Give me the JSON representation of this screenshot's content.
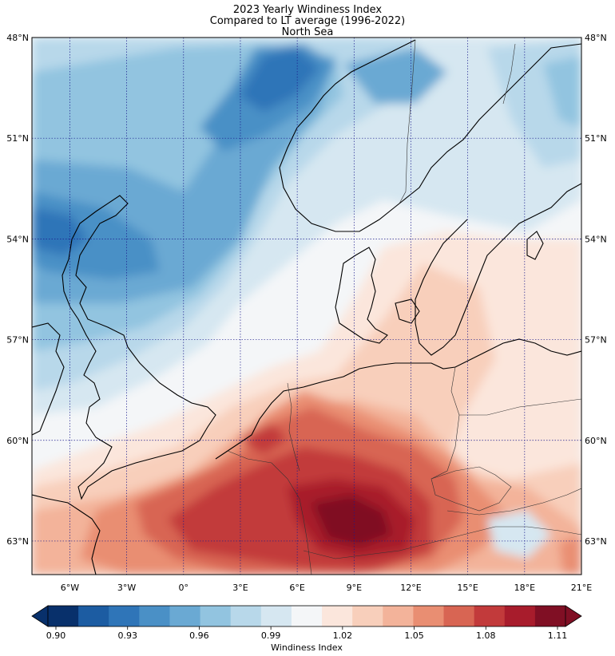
{
  "title": "2023 Yearly Windiness Index",
  "subtitle": "Compared to LT average (1996-2022)",
  "region": "North Sea",
  "lat_labels": [
    "63°N",
    "60°N",
    "57°N",
    "54°N",
    "51°N",
    "48°N"
  ],
  "lon_labels": [
    "6°W",
    "3°W",
    "0°",
    "3°E",
    "6°E",
    "9°E",
    "12°E",
    "15°E",
    "18°E",
    "21°E"
  ],
  "colorbar": {
    "label": "Windiness Index",
    "tick_labels": [
      "0.90",
      "0.93",
      "0.96",
      "0.99",
      "1.02",
      "1.05",
      "1.08",
      "1.11"
    ],
    "colors": [
      "#08306b",
      "#1c5ca2",
      "#2f75b8",
      "#4a90c6",
      "#6aa9d3",
      "#92c4e0",
      "#b8d8ea",
      "#d6e7f1",
      "#f4f6f8",
      "#fbe6dc",
      "#f8cfbb",
      "#f3b39a",
      "#e98e72",
      "#d86553",
      "#c23a3b",
      "#a81c2c",
      "#800f24"
    ]
  },
  "map_data": {
    "lon_range": [
      -8,
      21
    ],
    "lat_range": [
      47,
      63
    ],
    "levels_min": 0.9,
    "levels_max": 1.11,
    "gridline_lons": [
      -6,
      -3,
      0,
      3,
      6,
      9,
      12,
      15,
      18,
      21
    ],
    "gridline_lats": [
      48,
      51,
      54,
      57,
      60,
      63
    ]
  }
}
